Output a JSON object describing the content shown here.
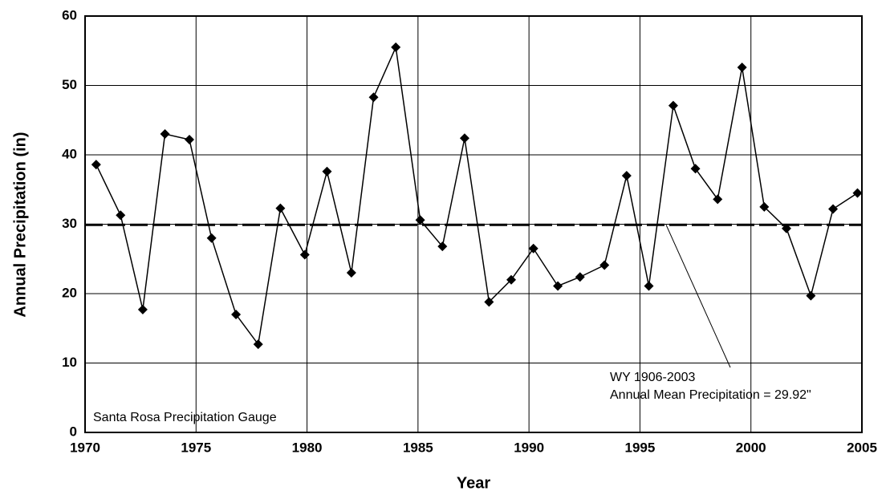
{
  "chart_data": {
    "type": "line",
    "x_label": "Year",
    "y_label": "Annual Precipitation (in)",
    "x": [
      1970.5,
      1971.6,
      1972.6,
      1973.6,
      1974.7,
      1975.7,
      1976.8,
      1977.8,
      1978.8,
      1979.9,
      1980.9,
      1982.0,
      1983.0,
      1984.0,
      1985.1,
      1986.1,
      1987.1,
      1988.2,
      1989.2,
      1990.2,
      1991.3,
      1992.3,
      1993.4,
      1994.4,
      1995.4,
      1996.5,
      1997.5,
      1998.5,
      1999.6,
      2000.6,
      2001.6,
      2002.7,
      2003.7,
      2004.8
    ],
    "series": [
      {
        "name": "Annual Precipitation",
        "color": "#000000",
        "values": [
          38.6,
          31.3,
          17.7,
          43.0,
          42.2,
          28.0,
          17.0,
          12.7,
          32.3,
          25.6,
          37.6,
          23.0,
          48.3,
          55.5,
          30.6,
          26.8,
          42.4,
          18.8,
          22.0,
          26.5,
          21.1,
          22.4,
          24.1,
          37.0,
          21.1,
          47.1,
          38.0,
          33.6,
          52.6,
          32.5,
          29.4,
          19.7,
          32.2,
          34.5
        ]
      }
    ],
    "mean_line": 29.92,
    "xlim": [
      1970,
      2005
    ],
    "xticks": [
      1970,
      1975,
      1980,
      1985,
      1990,
      1995,
      2000,
      2005
    ],
    "ylim": [
      0,
      60
    ],
    "yticks": [
      0,
      10,
      20,
      30,
      40,
      50,
      60
    ],
    "grid": true,
    "annotations": [
      "WY 1906-2003",
      "Annual Mean Precipitation = 29.92\"",
      "Santa Rosa Precipitation Gauge"
    ]
  }
}
